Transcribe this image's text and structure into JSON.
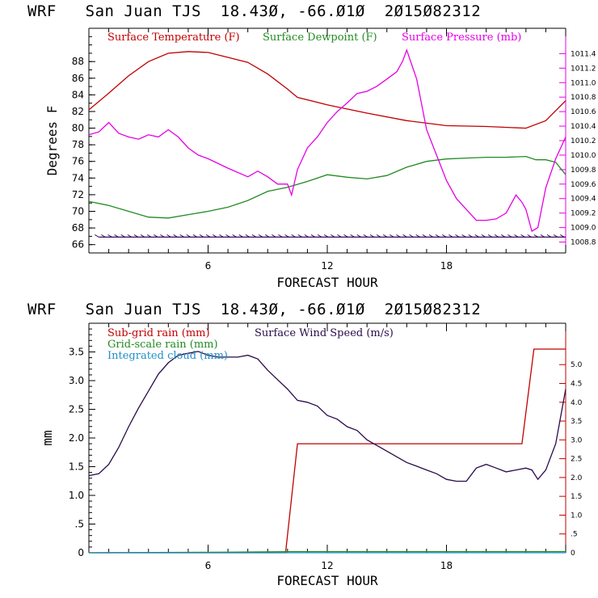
{
  "chart_data": [
    {
      "type": "line",
      "title": "WRF   San Juan TJS  18.43Ø, -66.Ø1Ø  2Ø15Ø82312",
      "xlabel": "FORECAST HOUR",
      "ylabel": "Degrees F",
      "xlim": [
        0,
        24
      ],
      "ylim": [
        65,
        92
      ],
      "y2lim": [
        1008.65,
        1011.75
      ],
      "x_ticks": [
        "6",
        "12",
        "18"
      ],
      "y_ticks": [
        "66",
        "68",
        "70",
        "72",
        "74",
        "76",
        "78",
        "80",
        "82",
        "84",
        "86",
        "88"
      ],
      "y2_ticks": [
        "1008.8",
        "1009.0",
        "1009.2",
        "1009.4",
        "1009.6",
        "1009.8",
        "1010.0",
        "1010.2",
        "1010.4",
        "1010.6",
        "1010.8",
        "1011.0",
        "1011.2",
        "1011.4"
      ],
      "grid": false,
      "legend_position": "top",
      "series": [
        {
          "name": "Surface Temperature (F)",
          "color": "#c00000",
          "axis": "left",
          "x": [
            0,
            1,
            2,
            3,
            4,
            5,
            6,
            7,
            8,
            9,
            10,
            10.5,
            12,
            14,
            16,
            18,
            20,
            22,
            23,
            24
          ],
          "y": [
            82.2,
            84.2,
            86.3,
            88.0,
            89.0,
            89.2,
            89.1,
            88.5,
            87.9,
            86.5,
            84.7,
            83.7,
            82.8,
            81.8,
            80.9,
            80.3,
            80.2,
            80.0,
            80.9,
            83.3
          ]
        },
        {
          "name": "Surface Dewpoint (F)",
          "color": "#228b22",
          "axis": "left",
          "x": [
            0,
            1,
            2,
            3,
            4,
            5,
            6,
            7,
            8,
            9,
            10,
            11,
            12,
            13,
            14,
            15,
            16,
            17,
            18,
            19,
            20,
            21,
            22,
            22.5,
            23,
            23.5,
            24
          ],
          "y": [
            71.2,
            70.7,
            70.0,
            69.3,
            69.2,
            69.6,
            70.0,
            70.5,
            71.3,
            72.4,
            72.9,
            73.6,
            74.4,
            74.1,
            73.9,
            74.3,
            75.3,
            76.0,
            76.3,
            76.4,
            76.5,
            76.5,
            76.6,
            76.2,
            76.2,
            75.9,
            74.4
          ]
        },
        {
          "name": "Surface Pressure (mb)",
          "color": "#e400e4",
          "axis": "right",
          "x": [
            0,
            0.5,
            1,
            1.5,
            2,
            2.5,
            3,
            3.5,
            4,
            4.5,
            5,
            5.5,
            6,
            7,
            8,
            8.5,
            9,
            9.5,
            10,
            10.2,
            10.5,
            11,
            11.5,
            12,
            12.5,
            13,
            13.5,
            14,
            14.5,
            15,
            15.5,
            15.8,
            16,
            16.5,
            17,
            17.5,
            18,
            18.5,
            19,
            19.5,
            20,
            20.5,
            21,
            21.5,
            21.8,
            22,
            22.3,
            22.6,
            23,
            23.5,
            24
          ],
          "y": [
            1010.28,
            1010.32,
            1010.45,
            1010.3,
            1010.25,
            1010.22,
            1010.28,
            1010.25,
            1010.35,
            1010.25,
            1010.1,
            1010.0,
            1009.95,
            1009.82,
            1009.7,
            1009.78,
            1009.7,
            1009.6,
            1009.6,
            1009.45,
            1009.8,
            1010.1,
            1010.25,
            1010.45,
            1010.6,
            1010.72,
            1010.85,
            1010.88,
            1010.95,
            1011.05,
            1011.15,
            1011.3,
            1011.45,
            1011.05,
            1010.35,
            1010.0,
            1009.65,
            1009.4,
            1009.25,
            1009.1,
            1009.1,
            1009.12,
            1009.2,
            1009.45,
            1009.35,
            1009.25,
            1008.95,
            1009.0,
            1009.55,
            1009.95,
            1010.25
          ]
        },
        {
          "name": "Wind barbs",
          "color": "#3a0a5a",
          "axis": "left",
          "x": [
            0.5,
            24
          ],
          "y": [
            66.9,
            66.9
          ]
        }
      ]
    },
    {
      "type": "line",
      "title": "WRF   San Juan TJS  18.43Ø, -66.Ø1Ø  2Ø15Ø82312",
      "xlabel": "FORECAST HOUR",
      "ylabel": "mm",
      "xlim": [
        0,
        24
      ],
      "ylim": [
        0,
        4.0
      ],
      "y2lim": [
        0,
        6.1
      ],
      "x_ticks": [
        "6",
        "12",
        "18"
      ],
      "y_ticks": [
        "0",
        ".5",
        "1.0",
        "1.5",
        "2.0",
        "2.5",
        "3.0",
        "3.5"
      ],
      "y2_ticks": [
        "0",
        ".5",
        "1.0",
        "1.5",
        "2.0",
        "2.5",
        "3.0",
        "3.5",
        "4.0",
        "4.5",
        "5.0"
      ],
      "grid": false,
      "legend_position": "top-left",
      "series": [
        {
          "name": "Sub-grid rain (mm)",
          "color": "#c00000",
          "axis": "left",
          "x": [
            0,
            9.9,
            10.5,
            21.8,
            22.4,
            24
          ],
          "y": [
            0,
            0,
            1.9,
            1.9,
            3.55,
            3.55
          ]
        },
        {
          "name": "Grid-scale rain (mm)",
          "color": "#228b22",
          "axis": "left",
          "x": [
            0,
            7,
            10,
            24
          ],
          "y": [
            0,
            0.01,
            0.02,
            0.02
          ]
        },
        {
          "name": "Integrated cloud (mm)",
          "color": "#1e90c8",
          "axis": "left",
          "x": [
            0,
            24
          ],
          "y": [
            0,
            0
          ]
        },
        {
          "name": "Surface Wind Speed (m/s)",
          "color": "#2a0a4a",
          "axis": "right",
          "x": [
            0,
            0.5,
            1,
            1.5,
            2,
            2.5,
            3,
            3.5,
            4,
            4.5,
            5,
            5.5,
            6,
            6.5,
            7,
            7.5,
            8,
            8.5,
            9,
            9.5,
            10,
            10.5,
            11,
            11.5,
            12,
            12.5,
            13,
            13.5,
            14,
            14.5,
            15,
            15.5,
            16,
            16.5,
            17,
            17.5,
            18,
            18.5,
            19,
            19.5,
            20,
            20.5,
            21,
            21.5,
            22,
            22.3,
            22.6,
            23,
            23.5,
            24
          ],
          "y": [
            2.05,
            2.1,
            2.35,
            2.8,
            3.35,
            3.85,
            4.3,
            4.75,
            5.05,
            5.25,
            5.3,
            5.35,
            5.25,
            5.2,
            5.2,
            5.2,
            5.25,
            5.15,
            4.85,
            4.6,
            4.35,
            4.05,
            4.0,
            3.9,
            3.65,
            3.55,
            3.35,
            3.25,
            3.0,
            2.85,
            2.7,
            2.55,
            2.4,
            2.3,
            2.2,
            2.1,
            1.95,
            1.9,
            1.9,
            2.25,
            2.35,
            2.25,
            2.15,
            2.2,
            2.25,
            2.2,
            1.95,
            2.2,
            2.9,
            4.35
          ]
        }
      ]
    }
  ]
}
